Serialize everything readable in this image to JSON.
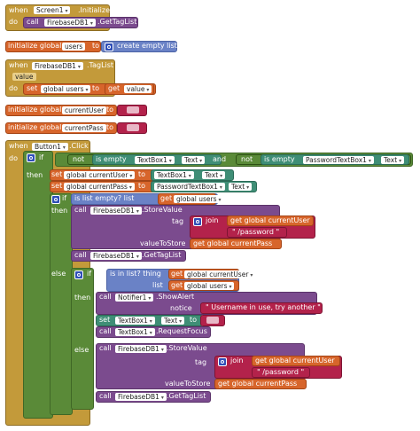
{
  "block1": {
    "when": "when",
    "component": "Screen1",
    "event": ".Initialize",
    "do": "do",
    "call": "call",
    "method_comp": "FirebaseDB1",
    "method": ".GetTagList"
  },
  "block2": {
    "label": "initialize global",
    "var": "users",
    "to": "to",
    "create": "create empty list"
  },
  "block3": {
    "when": "when",
    "component": "FirebaseDB1",
    "event": ".TagList",
    "param": "value",
    "do": "do",
    "set": "set",
    "var": "global users",
    "to": "to",
    "get": "get",
    "getvar": "value"
  },
  "block4": {
    "label": "initialize global",
    "var": "currentUser",
    "to": "to",
    "text": "\" \""
  },
  "block5": {
    "label": "initialize global",
    "var": "currentPass",
    "to": "to",
    "text": "\" \""
  },
  "block6": {
    "when": "when",
    "component": "Button1",
    "event": ".Click",
    "do": "do",
    "if": "if",
    "then": "then",
    "else": "else",
    "not1": "not",
    "isempty1": "is empty",
    "tb1": "TextBox1",
    "text": "Text",
    "and": "and",
    "not2": "not",
    "isempty2": "is empty",
    "ptb": "PasswordTextBox1",
    "set": "set",
    "cu": "global currentUser",
    "to": "to",
    "cp": "global currentPass",
    "if2": "if",
    "islistempty": "is list empty?  list",
    "get": "get",
    "gusers": "global users",
    "call": "call",
    "fb": "FirebaseDB1",
    "store": ".StoreValue",
    "tag": "tag",
    "join": "join",
    "gcu": "get global currentUser",
    "pw": "\" /password \"",
    "vts": "valueToStore",
    "gcp": "get global currentPass",
    "gettaglist": ".GetTagList",
    "isinlist": "is in list?  thing",
    "list": "list",
    "notifier": "Notifier1",
    "showalert": ".ShowAlert",
    "notice": "notice",
    "inuse": "\" Username in use, try another \"",
    "settb": "set",
    "tbtext": "Text",
    "tbto": "to",
    "reqfocus": ".RequestFocus",
    "empty": "\" \""
  },
  "colors": {
    "event": "#c39a3a",
    "procedure": "#7b4b8e",
    "variable": "#d7652b",
    "text": "#b3224b",
    "control": "#5a8a38",
    "list": "#6a82c6",
    "component": "#3f8e76"
  }
}
